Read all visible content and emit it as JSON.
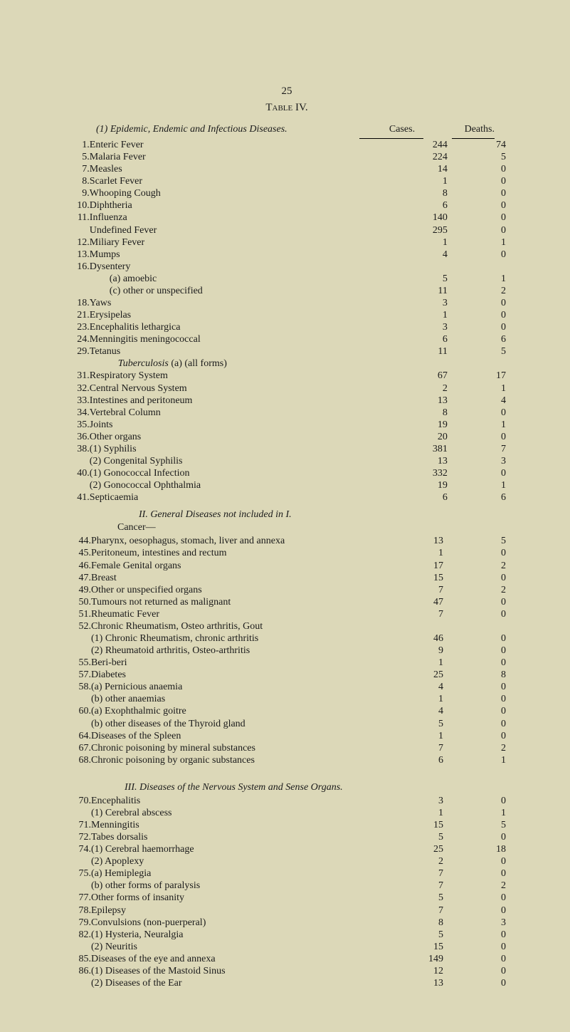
{
  "page_number": "25",
  "table_label": "Table IV.",
  "headers": {
    "left": "(1) Epidemic, Endemic and Infectious Diseases.",
    "cases": "Cases.",
    "deaths": "Deaths."
  },
  "section1": {
    "rows": [
      {
        "n": "1.",
        "label": "Enteric Fever",
        "d1": "..",
        "d2": "..",
        "d3": "..",
        "cases": "244",
        "deaths": "74"
      },
      {
        "n": "5.",
        "label": "Malaria Fever",
        "d1": "..",
        "d2": "..",
        "d3": "..",
        "cases": "224",
        "deaths": "5"
      },
      {
        "n": "7.",
        "label": "Measles",
        "d1": "..",
        "d2": "..",
        "d3": "..",
        "cases": "14",
        "deaths": "0"
      },
      {
        "n": "8.",
        "label": "Scarlet Fever",
        "d1": "..",
        "d2": "..",
        "d3": "..",
        "cases": "1",
        "deaths": "0"
      },
      {
        "n": "9.",
        "label": "Whooping Cough",
        "d1": "",
        "d2": "..",
        "d3": "..",
        "cases": "8",
        "deaths": "0"
      },
      {
        "n": "10.",
        "label": "Diphtheria",
        "d1": "..",
        "d2": "..",
        "d3": "..",
        "cases": "6",
        "deaths": "0"
      },
      {
        "n": "11.",
        "label": "Influenza",
        "d1": "..",
        "d2": "..",
        "d3": "..",
        "cases": "140",
        "deaths": "0"
      },
      {
        "n": "",
        "label": "Undefined Fever",
        "d1": "",
        "d2": "..",
        "d3": "..",
        "cases": "295",
        "deaths": "0"
      },
      {
        "n": "12.",
        "label": "Miliary Fever",
        "d1": "..",
        "d2": "..",
        "d3": "..",
        "cases": "1",
        "deaths": "1"
      },
      {
        "n": "13.",
        "label": "Mumps",
        "d1": "..",
        "d2": "..",
        "d3": "..",
        "cases": "4",
        "deaths": "0"
      },
      {
        "n": "16.",
        "label": "Dysentery",
        "d1": "..",
        "d2": "",
        "d3": "",
        "cases": "",
        "deaths": ""
      },
      {
        "n": "",
        "indent": 1,
        "label": "(a) amoebic",
        "d1": "",
        "d2": "..",
        "d3": "..",
        "cases": "5",
        "deaths": "1"
      },
      {
        "n": "",
        "indent": 1,
        "label": "(c) other or unspecified",
        "d1": "..",
        "d2": "",
        "d3": "..",
        "cases": "11",
        "deaths": "2"
      },
      {
        "n": "18.",
        "label": "Yaws",
        "d1": "..",
        "d2": "..",
        "d3": "..",
        "cases": "3",
        "deaths": "0"
      },
      {
        "n": "21.",
        "label": "Erysipelas",
        "d1": "..",
        "d2": "..",
        "d3": "..",
        "cases": "1",
        "deaths": "0"
      },
      {
        "n": "23.",
        "label": "Encephalitis lethargica",
        "d1": "",
        "d2": "..",
        "d3": "..",
        "cases": "3",
        "deaths": "0"
      },
      {
        "n": "24.",
        "label": "Menningitis meningococcal",
        "d1": "",
        "d2": "",
        "d3": "..",
        "cases": "6",
        "deaths": "6"
      },
      {
        "n": "29.",
        "label": "Tetanus",
        "d1": "..",
        "d2": "..",
        "d3": "..",
        "cases": "11",
        "deaths": "5"
      },
      {
        "n": "",
        "indent": 2,
        "label": "Tuberculosis (a) (all forms)",
        "italic": true,
        "pre": "Tuberculosis",
        "post": " (a) (all forms)",
        "d1": "",
        "d2": "",
        "d3": "",
        "cases": "",
        "deaths": ""
      },
      {
        "n": "31.",
        "label": "Respiratory System",
        "d1": "",
        "d2": "..",
        "d3": "..",
        "cases": "67",
        "deaths": "17"
      },
      {
        "n": "32.",
        "label": "Central Nervous System",
        "d1": "",
        "d2": "..",
        "d3": "..",
        "cases": "2",
        "deaths": "1"
      },
      {
        "n": "33.",
        "label": "Intestines and peritoneum",
        "d1": "..",
        "d2": "",
        "d3": "..",
        "cases": "13",
        "deaths": "4"
      },
      {
        "n": "34.",
        "label": "Vertebral Column",
        "d1": "",
        "d2": "..",
        "d3": "..",
        "cases": "8",
        "deaths": "0"
      },
      {
        "n": "35.",
        "label": "Joints",
        "d1": "..",
        "d2": "..",
        "d3": "..",
        "cases": "19",
        "deaths": "1"
      },
      {
        "n": "36.",
        "label": "Other organs",
        "d1": "",
        "d2": "..",
        "d3": "..",
        "cases": "20",
        "deaths": "0"
      },
      {
        "n": "38.",
        "label": "(1) Syphilis",
        "d1": "..",
        "d2": "..",
        "d3": "..",
        "cases": "381",
        "deaths": "7"
      },
      {
        "n": "",
        "label": "(2) Congenital Syphilis",
        "d1": "",
        "d2": "..",
        "d3": "..",
        "cases": "13",
        "deaths": "3"
      },
      {
        "n": "40.",
        "label": "(1) Gonococcal Infection",
        "d1": "..",
        "d2": "",
        "d3": "..",
        "cases": "332",
        "deaths": "0"
      },
      {
        "n": "",
        "label": "(2) Gonococcal Ophthalmia",
        "d1": "",
        "d2": "",
        "d3": "..",
        "cases": "19",
        "deaths": "1"
      },
      {
        "n": "41.",
        "label": "Septicaemia",
        "d1": "..",
        "d2": "..",
        "d3": "..",
        "cases": "6",
        "deaths": "6"
      }
    ]
  },
  "section2": {
    "title": "II. General Diseases not included in I.",
    "subtitle": "Cancer—",
    "rows": [
      {
        "n": "44.",
        "label": "Pharynx, oesophagus, stomach, liver and annexa",
        "cases": "13",
        "deaths": "5"
      },
      {
        "n": "45.",
        "label": "Peritoneum, intestines and rectum",
        "d3": "..",
        "cases": "1",
        "deaths": "0"
      },
      {
        "n": "46.",
        "label": "Female Genital organs",
        "d2": "..",
        "d3": "..",
        "cases": "17",
        "deaths": "2"
      },
      {
        "n": "47.",
        "label": "Breast",
        "d1": "..",
        "d2": "..",
        "d3": "..",
        "cases": "15",
        "deaths": "0"
      },
      {
        "n": "49.",
        "label": "Other or unspecified organs",
        "d3": "..",
        "cases": "7",
        "deaths": "2"
      },
      {
        "n": "50.",
        "label": "Tumours not returned as malignant",
        "d3": "..",
        "cases": "47",
        "deaths": "0"
      },
      {
        "n": "51.",
        "label": "Rheumatic Fever",
        "d2": "..",
        "d3": "..",
        "cases": "7",
        "deaths": "0"
      },
      {
        "n": "52.",
        "label": "Chronic Rheumatism, Osteo arthritis, Gout",
        "cases": "",
        "deaths": ""
      },
      {
        "n": "",
        "label": "(1) Chronic Rheumatism, chronic arthritis",
        "cases": "46",
        "deaths": "0"
      },
      {
        "n": "",
        "label": "(2) Rheumatoid arthritis, Osteo-arthritis",
        "cases": "9",
        "deaths": "0"
      },
      {
        "n": "55.",
        "label": "Beri-beri",
        "d1": "..",
        "d2": "..",
        "d3": "..",
        "cases": "1",
        "deaths": "0"
      },
      {
        "n": "57.",
        "label": "Diabetes",
        "d1": "..",
        "d2": "..",
        "d3": "..",
        "cases": "25",
        "deaths": "8"
      },
      {
        "n": "58.",
        "label": "(a) Pernicious anaemia",
        "d2": "..",
        "d3": "..",
        "cases": "4",
        "deaths": "0"
      },
      {
        "n": "",
        "label": "(b) other anaemias",
        "d2": "..",
        "d3": "..",
        "cases": "1",
        "deaths": "0"
      },
      {
        "n": "60.",
        "label": "(a) Exophthalmic goitre",
        "d2": "..",
        "d3": "..",
        "cases": "4",
        "deaths": "0"
      },
      {
        "n": "",
        "label": "(b) other diseases of the Thyroid gland",
        "cases": "5",
        "deaths": "0"
      },
      {
        "n": "64.",
        "label": "Diseases of the Spleen",
        "d2": "..",
        "d3": "..",
        "cases": "1",
        "deaths": "0"
      },
      {
        "n": "67.",
        "label": "Chronic poisoning by mineral substances",
        "cases": "7",
        "deaths": "2"
      },
      {
        "n": "68.",
        "label": "Chronic poisoning by organic substances",
        "cases": "6",
        "deaths": "1"
      }
    ]
  },
  "section3": {
    "title": "III. Diseases of the Nervous System and Sense Organs.",
    "rows": [
      {
        "n": "70.",
        "label": "Encephalitis",
        "d1": "..",
        "d2": "..",
        "d3": "..",
        "cases": "3",
        "deaths": "0"
      },
      {
        "n": "",
        "label": "(1) Cerebral abscess",
        "d2": "..",
        "d3": "..",
        "cases": "1",
        "deaths": "1"
      },
      {
        "n": "71.",
        "label": "Menningitis",
        "d1": "..",
        "d2": "..",
        "d3": "..",
        "cases": "15",
        "deaths": "5"
      },
      {
        "n": "72.",
        "label": "Tabes dorsalis",
        "d2": "..",
        "d3": "..",
        "cases": "5",
        "deaths": "0"
      },
      {
        "n": "74.",
        "label": "(1) Cerebral haemorrhage",
        "d1": "..",
        "d3": "..",
        "cases": "25",
        "deaths": "18"
      },
      {
        "n": "",
        "label": "(2) Apoplexy",
        "d2": "..",
        "d3": "..",
        "cases": "2",
        "deaths": "0"
      },
      {
        "n": "75.",
        "label": "(a) Hemiplegia",
        "d2": "..",
        "d3": "..",
        "cases": "7",
        "deaths": "0"
      },
      {
        "n": "",
        "label": "(b) other forms of paralysis",
        "d3": "..",
        "cases": "7",
        "deaths": "2"
      },
      {
        "n": "77.",
        "label": "Other forms of insanity",
        "d2": "..",
        "d3": "..",
        "cases": "5",
        "deaths": "0"
      },
      {
        "n": "78.",
        "label": "Epilepsy",
        "d1": "..",
        "d2": "..",
        "d3": "..",
        "cases": "7",
        "deaths": "0"
      },
      {
        "n": "79.",
        "label": "Convulsions (non-puerperal)",
        "d3": "..",
        "cases": "8",
        "deaths": "3"
      },
      {
        "n": "82.",
        "label": "(1) Hysteria, Neuralgia",
        "d2": "..",
        "d3": "..",
        "cases": "5",
        "deaths": "0"
      },
      {
        "n": "",
        "label": "(2) Neuritis",
        "d1": "..",
        "d2": "..",
        "d3": "..",
        "cases": "15",
        "deaths": "0"
      },
      {
        "n": "85.",
        "label": "Diseases of the eye and annexa",
        "d3": "..",
        "cases": "149",
        "deaths": "0"
      },
      {
        "n": "86.",
        "label": "(1) Diseases of the Mastoid Sinus",
        "d3": "..",
        "cases": "12",
        "deaths": "0"
      },
      {
        "n": "",
        "label": "(2) Diseases of the Ear",
        "d2": "..",
        "d3": "..",
        "cases": "13",
        "deaths": "0"
      }
    ]
  }
}
